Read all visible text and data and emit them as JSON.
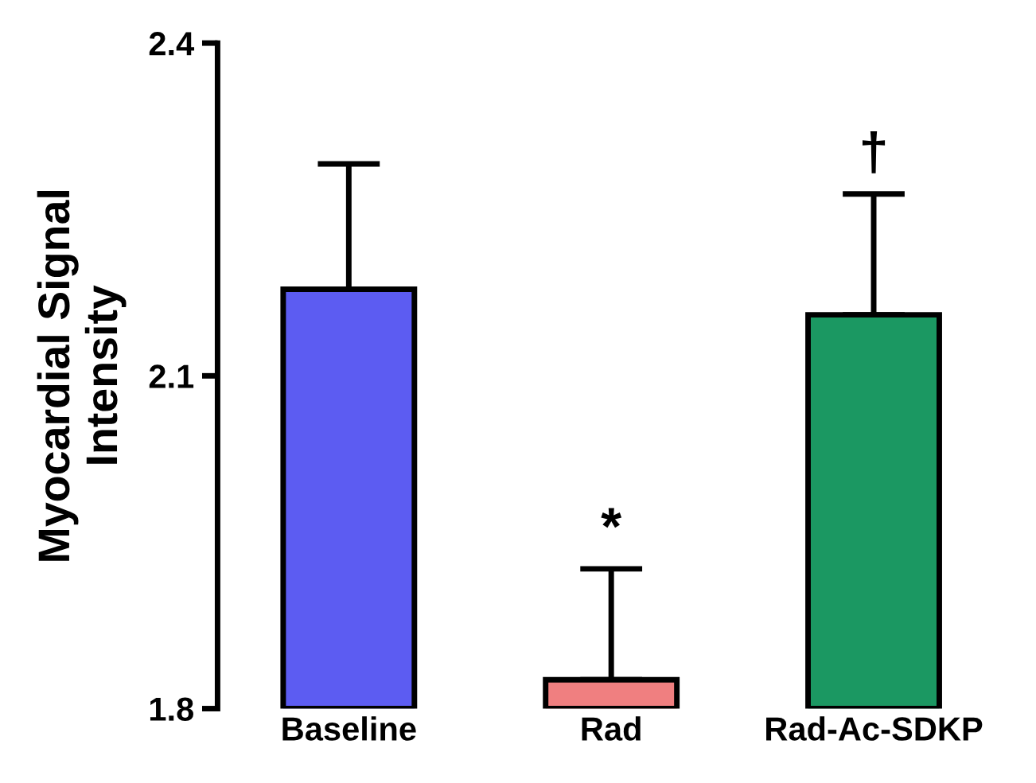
{
  "chart_data": {
    "type": "bar",
    "ylabel": "Myocardial Signal\nIntensity",
    "categories": [
      "Baseline",
      "Rad",
      "Rad-Ac-SDKP"
    ],
    "values": [
      2.178,
      1.826,
      2.155
    ],
    "errors": [
      [
        2.178,
        2.291
      ],
      [
        1.826,
        1.926
      ],
      [
        2.155,
        2.264
      ]
    ],
    "colors": [
      "#5c5cf2",
      "#f07f80",
      "#1b9862"
    ],
    "ylim": [
      1.8,
      2.4
    ],
    "yticks": [
      1.8,
      2.1,
      2.4
    ],
    "grid": false,
    "legend": false,
    "annotations": [
      "*",
      "†"
    ]
  }
}
